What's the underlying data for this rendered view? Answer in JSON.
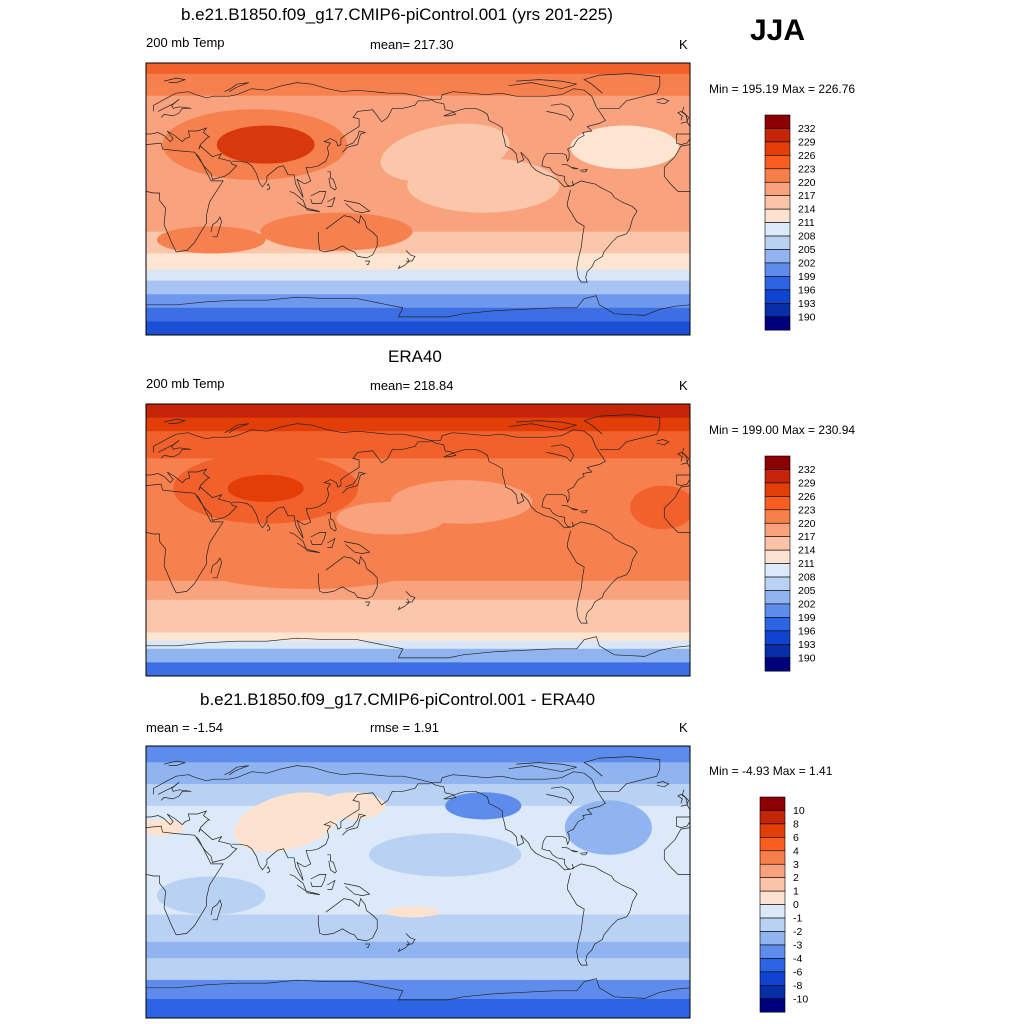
{
  "season": "JJA",
  "panels": [
    {
      "title": "b.e21.B1850.f09_g17.CMIP6-piControl.001 (yrs 201-225)",
      "left_label": "200 mb Temp",
      "center_label": "mean= 217.30",
      "units": "K",
      "minmax": "Min = 195.19 Max = 226.76",
      "colorbar_labels": [
        "232",
        "229",
        "226",
        "223",
        "220",
        "217",
        "214",
        "211",
        "208",
        "205",
        "202",
        "199",
        "196",
        "193",
        "190"
      ],
      "colorbar_colors": [
        "#8b0000",
        "#c42508",
        "#e33d08",
        "#f85e1f",
        "#f77f4a",
        "#f9a07c",
        "#fbc4a8",
        "#fde3cf",
        "#dce9f8",
        "#b9d2f4",
        "#90b4f0",
        "#5e8cec",
        "#2c64e4",
        "#0f44d0",
        "#072ea6",
        "#00007f"
      ],
      "field_colors": [
        "#d7380e",
        "#f2602c",
        "#f7804f",
        "#f9a27e",
        "#fbc7ab",
        "#fde6d1",
        "#d8e6f7",
        "#a8c4f3",
        "#6e98ee",
        "#3b6fe3",
        "#1a4fd6"
      ]
    },
    {
      "title": "ERA40",
      "left_label": "200 mb Temp",
      "center_label": "mean= 218.84",
      "units": "K",
      "minmax": "Min = 199.00 Max = 230.94",
      "colorbar_labels": [
        "232",
        "229",
        "226",
        "223",
        "220",
        "217",
        "214",
        "211",
        "208",
        "205",
        "202",
        "199",
        "196",
        "193",
        "190"
      ],
      "colorbar_colors": [
        "#8b0000",
        "#c42508",
        "#e33d08",
        "#f85e1f",
        "#f77f4a",
        "#f9a07c",
        "#fbc4a8",
        "#fde3cf",
        "#dce9f8",
        "#b9d2f4",
        "#90b4f0",
        "#5e8cec",
        "#2c64e4",
        "#0f44d0",
        "#072ea6",
        "#00007f"
      ],
      "field_colors": [
        "#c42508",
        "#e33d08",
        "#f2602c",
        "#f7804f",
        "#f9a27e",
        "#fbc7ab",
        "#fde6d1",
        "#d8e6f7",
        "#90b4f0",
        "#3b6fe3",
        "#1a4fd6"
      ]
    },
    {
      "title": "b.e21.B1850.f09_g17.CMIP6-piControl.001 - ERA40",
      "left_label": "mean =  -1.54",
      "center_label": "rmse =   1.91",
      "units": "K",
      "minmax": "Min =  -4.93 Max =   1.41",
      "colorbar_labels": [
        "10",
        "8",
        "6",
        "4",
        "3",
        "2",
        "1",
        "0",
        "-1",
        "-2",
        "-3",
        "-4",
        "-6",
        "-8",
        "-10"
      ],
      "colorbar_colors": [
        "#8b0000",
        "#c42508",
        "#e33d08",
        "#f85e1f",
        "#f77f4a",
        "#f9a07c",
        "#fbc4a8",
        "#fde3cf",
        "#dce9f8",
        "#b9d2f4",
        "#90b4f0",
        "#5e8cec",
        "#2c64e4",
        "#0f44d0",
        "#072ea6",
        "#00007f"
      ],
      "field_colors": [
        "#fde3cf",
        "#dce9f8",
        "#b9d2f4",
        "#90b4f0",
        "#5e8cec",
        "#2c64e4"
      ]
    }
  ]
}
